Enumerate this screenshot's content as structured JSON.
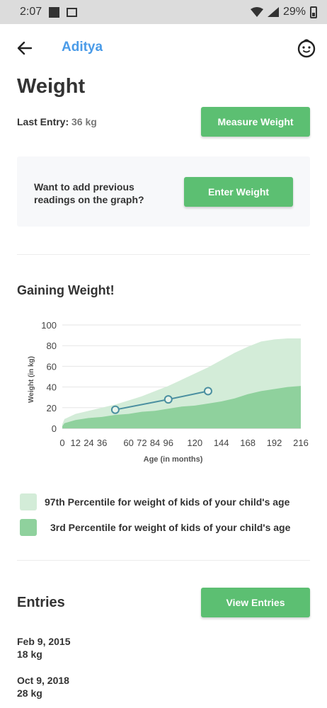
{
  "status_bar": {
    "time": "2:07",
    "battery": "29%"
  },
  "app_bar": {
    "back_icon": "arrow-left-icon",
    "child_name": "Aditya",
    "profile_icon": "baby-face-icon"
  },
  "page": {
    "title": "Weight",
    "last_entry_label": "Last Entry:",
    "last_entry_value": "36 kg",
    "measure_button": "Measure Weight"
  },
  "previous_readings": {
    "question": "Want to add previous readings on the graph?",
    "button": "Enter Weight"
  },
  "growth": {
    "heading": "Gaining Weight!"
  },
  "chart_data": {
    "type": "area",
    "xlabel": "Age (in months)",
    "ylabel": "Weight (in kg)",
    "xlim": [
      0,
      216
    ],
    "ylim": [
      0,
      100
    ],
    "x_ticks": [
      0,
      12,
      24,
      36,
      60,
      72,
      84,
      96,
      120,
      144,
      168,
      192,
      216
    ],
    "y_ticks": [
      0,
      20,
      40,
      60,
      80,
      100
    ],
    "grid": true,
    "series": [
      {
        "name": "97th Percentile for weight of kids of your child's age",
        "type": "area",
        "color": "#d3ecd8",
        "x": [
          0,
          2,
          12,
          24,
          36,
          48,
          60,
          72,
          84,
          96,
          108,
          120,
          132,
          144,
          156,
          168,
          180,
          192,
          204,
          216
        ],
        "y": [
          4,
          9,
          14,
          17,
          20,
          23,
          27,
          31,
          36,
          41,
          47,
          53,
          59,
          66,
          73,
          79,
          84,
          86,
          87,
          87
        ]
      },
      {
        "name": "3rd Percentile for weight of kids of your child's age",
        "type": "area",
        "color": "#8fd19d",
        "x": [
          0,
          2,
          12,
          24,
          36,
          48,
          60,
          72,
          84,
          96,
          108,
          120,
          132,
          144,
          156,
          168,
          180,
          192,
          204,
          216
        ],
        "y": [
          2,
          5,
          8,
          10,
          11,
          13,
          14,
          16,
          17,
          19,
          21,
          22,
          24,
          26,
          29,
          33,
          36,
          38,
          40,
          41
        ]
      },
      {
        "name": "Child weight",
        "type": "line",
        "color": "#4a8fa0",
        "x": [
          48,
          96,
          132
        ],
        "y": [
          18,
          28,
          36
        ]
      }
    ]
  },
  "legend": [
    {
      "label": "97th Percentile for weight of kids of your child's age",
      "color": "#d3ecd8"
    },
    {
      "label": "3rd Percentile for weight of kids of your child's age",
      "color": "#8fd19d"
    }
  ],
  "entries": {
    "heading": "Entries",
    "view_button": "View Entries",
    "items": [
      {
        "date": "Feb 9, 2015",
        "weight": "18 kg"
      },
      {
        "date": "Oct 9, 2018",
        "weight": "28 kg"
      }
    ]
  },
  "colors": {
    "accent_green": "#5cbf72",
    "name_blue": "#4a9be8"
  }
}
